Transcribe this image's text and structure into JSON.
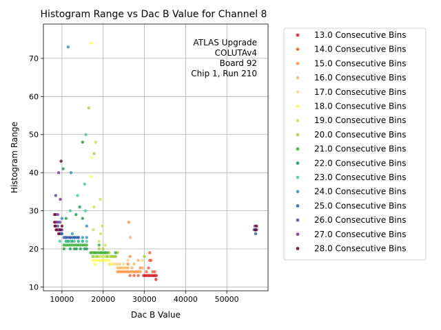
{
  "chart_data": {
    "type": "scatter",
    "title": "Histogram Range vs Dac B Value for Channel 8",
    "xlabel": "Dac B Value",
    "ylabel": "Histogram Range",
    "xlim": [
      5500,
      60000
    ],
    "ylim": [
      9,
      79
    ],
    "xticks": [
      10000,
      20000,
      30000,
      40000,
      50000
    ],
    "yticks": [
      10,
      20,
      30,
      40,
      50,
      60,
      70
    ],
    "grid": true,
    "annotation": [
      "ATLAS Upgrade",
      "COLUTAv4",
      "Board 92",
      "Chip 1, Run 210"
    ],
    "annotation_placement": "top-right",
    "legend_placement": "outside-right",
    "series": [
      {
        "name": "13.0 Consecutive Bins",
        "color": "#d7191c",
        "points": [
          [
            29800,
            13
          ],
          [
            30200,
            13
          ],
          [
            30600,
            13
          ],
          [
            31000,
            13
          ],
          [
            31400,
            13
          ],
          [
            31800,
            13
          ],
          [
            32200,
            13
          ],
          [
            32500,
            13
          ],
          [
            32800,
            12
          ],
          [
            32900,
            13
          ]
        ]
      },
      {
        "name": "14.0 Consecutive Bins",
        "color": "#ec5a3a",
        "points": [
          [
            26500,
            13
          ],
          [
            27500,
            13
          ],
          [
            28500,
            13
          ],
          [
            30500,
            14
          ],
          [
            31000,
            15
          ],
          [
            31300,
            17
          ],
          [
            31300,
            19
          ],
          [
            31600,
            17
          ],
          [
            32000,
            14
          ],
          [
            32500,
            14
          ]
        ]
      },
      {
        "name": "15.0 Consecutive Bins",
        "color": "#fb8c3a",
        "points": [
          [
            23500,
            14
          ],
          [
            24000,
            14
          ],
          [
            24500,
            14
          ],
          [
            25000,
            14
          ],
          [
            25500,
            14
          ],
          [
            26000,
            14
          ],
          [
            26500,
            14
          ],
          [
            27000,
            14
          ],
          [
            27500,
            14
          ],
          [
            28000,
            14
          ],
          [
            28500,
            14
          ],
          [
            29000,
            14
          ],
          [
            26200,
            27
          ],
          [
            26500,
            18
          ],
          [
            26000,
            16
          ],
          [
            29000,
            15
          ]
        ]
      },
      {
        "name": "16.0 Consecutive Bins",
        "color": "#fdb35f",
        "points": [
          [
            23500,
            15
          ],
          [
            24000,
            15
          ],
          [
            24500,
            15
          ],
          [
            25000,
            15
          ],
          [
            25500,
            15
          ],
          [
            26000,
            15
          ],
          [
            27000,
            15
          ],
          [
            28500,
            17
          ],
          [
            29000,
            14
          ],
          [
            29500,
            15
          ],
          [
            26600,
            23
          ],
          [
            27500,
            16
          ],
          [
            24000,
            16
          ]
        ]
      },
      {
        "name": "17.0 Consecutive Bins",
        "color": "#fed68a",
        "points": [
          [
            21500,
            16
          ],
          [
            22000,
            16
          ],
          [
            22500,
            16
          ],
          [
            23000,
            16
          ],
          [
            23500,
            16
          ],
          [
            24000,
            16
          ],
          [
            25000,
            16
          ],
          [
            29500,
            17
          ],
          [
            30000,
            18
          ],
          [
            26000,
            17
          ]
        ]
      },
      {
        "name": "18.0 Consecutive Bins",
        "color": "#ffff55",
        "points": [
          [
            17000,
            74
          ],
          [
            17200,
            44
          ],
          [
            17000,
            39
          ],
          [
            17500,
            17
          ],
          [
            18000,
            17
          ],
          [
            18000,
            16
          ],
          [
            18500,
            17
          ],
          [
            19000,
            17
          ],
          [
            19500,
            17
          ],
          [
            20000,
            17
          ],
          [
            20500,
            17
          ],
          [
            21000,
            17
          ],
          [
            21500,
            17
          ],
          [
            22000,
            16
          ]
        ]
      },
      {
        "name": "19.0 Consecutive Bins",
        "color": "#c5e35a",
        "points": [
          [
            17500,
            18
          ],
          [
            18000,
            18
          ],
          [
            18500,
            18
          ],
          [
            19000,
            18
          ],
          [
            19500,
            18
          ],
          [
            20000,
            18
          ],
          [
            20500,
            18
          ],
          [
            21000,
            18
          ],
          [
            21500,
            18
          ],
          [
            22000,
            18
          ],
          [
            22500,
            18
          ],
          [
            23000,
            18
          ],
          [
            18200,
            48
          ],
          [
            19300,
            33
          ],
          [
            17800,
            31
          ],
          [
            19800,
            26
          ],
          [
            17600,
            25
          ],
          [
            19400,
            24
          ],
          [
            19000,
            22
          ],
          [
            20500,
            21
          ]
        ]
      },
      {
        "name": "20.0 Consecutive Bins",
        "color": "#a1cc45",
        "points": [
          [
            16500,
            57
          ],
          [
            17800,
            45
          ],
          [
            17000,
            19
          ],
          [
            17500,
            18
          ],
          [
            18000,
            19
          ],
          [
            18500,
            18
          ],
          [
            19000,
            20
          ],
          [
            19500,
            19
          ],
          [
            20000,
            20
          ],
          [
            20500,
            19
          ],
          [
            21000,
            18
          ],
          [
            21500,
            19
          ],
          [
            22000,
            18
          ],
          [
            22500,
            18
          ],
          [
            23000,
            18
          ],
          [
            23500,
            19
          ],
          [
            30000,
            18
          ]
        ]
      },
      {
        "name": "21.0 Consecutive Bins",
        "color": "#3aaa35",
        "points": [
          [
            10500,
            21
          ],
          [
            11000,
            21
          ],
          [
            11500,
            21
          ],
          [
            12000,
            21
          ],
          [
            12500,
            21
          ],
          [
            13000,
            21
          ],
          [
            13500,
            21
          ],
          [
            14000,
            21
          ],
          [
            14500,
            21
          ],
          [
            15000,
            21
          ],
          [
            15500,
            21
          ],
          [
            16000,
            21
          ],
          [
            17000,
            19
          ],
          [
            17500,
            19
          ],
          [
            18000,
            19
          ],
          [
            18500,
            19
          ],
          [
            19000,
            19
          ],
          [
            19500,
            19
          ],
          [
            20000,
            19
          ],
          [
            20500,
            19
          ],
          [
            21000,
            19
          ],
          [
            23000,
            19
          ],
          [
            19000,
            21
          ]
        ]
      },
      {
        "name": "22.0 Consecutive Bins",
        "color": "#1a9850",
        "points": [
          [
            10500,
            20
          ],
          [
            11000,
            22
          ],
          [
            11500,
            22
          ],
          [
            12000,
            20
          ],
          [
            12500,
            22
          ],
          [
            13000,
            20
          ],
          [
            13500,
            20
          ],
          [
            14000,
            22
          ],
          [
            14500,
            20
          ],
          [
            15000,
            22
          ],
          [
            15500,
            20
          ],
          [
            16000,
            20
          ],
          [
            15000,
            48
          ],
          [
            10300,
            41
          ],
          [
            15000,
            28
          ],
          [
            13400,
            29
          ],
          [
            14300,
            31
          ],
          [
            11000,
            28
          ]
        ]
      },
      {
        "name": "23.0 Consecutive Bins",
        "color": "#3fc8a0",
        "points": [
          [
            15800,
            50
          ],
          [
            15500,
            37
          ],
          [
            13800,
            34
          ],
          [
            12000,
            30
          ],
          [
            11000,
            22
          ],
          [
            12000,
            22
          ],
          [
            13000,
            22
          ],
          [
            14000,
            22
          ],
          [
            15000,
            22
          ],
          [
            16000,
            22
          ],
          [
            9500,
            22
          ],
          [
            15700,
            30
          ]
        ]
      },
      {
        "name": "24.0 Consecutive Bins",
        "color": "#2c8fbf",
        "points": [
          [
            11500,
            73
          ],
          [
            12200,
            40
          ],
          [
            10000,
            28
          ],
          [
            11000,
            23
          ],
          [
            12000,
            23
          ],
          [
            13000,
            23
          ],
          [
            14000,
            23
          ],
          [
            15000,
            23
          ],
          [
            16000,
            23
          ],
          [
            16000,
            26
          ],
          [
            12500,
            24
          ],
          [
            9800,
            24
          ]
        ]
      },
      {
        "name": "25.0 Consecutive Bins",
        "color": "#2b58a8",
        "points": [
          [
            9000,
            25
          ],
          [
            9500,
            25
          ],
          [
            10000,
            24
          ],
          [
            10500,
            23
          ],
          [
            11000,
            23
          ],
          [
            11500,
            23
          ],
          [
            12000,
            23
          ],
          [
            12500,
            23
          ],
          [
            13000,
            23
          ],
          [
            13500,
            23
          ],
          [
            14000,
            23
          ],
          [
            57000,
            24
          ],
          [
            56600,
            25
          ],
          [
            57200,
            25
          ]
        ]
      },
      {
        "name": "26.0 Consecutive Bins",
        "color": "#5e3c99",
        "points": [
          [
            8500,
            34
          ],
          [
            8500,
            29
          ],
          [
            9000,
            27
          ],
          [
            9500,
            27
          ],
          [
            8500,
            26
          ],
          [
            9000,
            26
          ],
          [
            10000,
            25
          ],
          [
            9500,
            24
          ],
          [
            56800,
            26
          ],
          [
            57000,
            25
          ]
        ]
      },
      {
        "name": "27.0 Consecutive Bins",
        "color": "#7b3294",
        "points": [
          [
            9200,
            40
          ],
          [
            9600,
            33
          ],
          [
            9000,
            29
          ],
          [
            8600,
            27
          ],
          [
            8800,
            25
          ],
          [
            9300,
            25
          ],
          [
            57100,
            25
          ]
        ]
      },
      {
        "name": "28.0 Consecutive Bins",
        "color": "#67001f",
        "points": [
          [
            9800,
            43
          ],
          [
            8200,
            29
          ],
          [
            8200,
            27
          ],
          [
            8300,
            26
          ],
          [
            8600,
            25
          ],
          [
            9200,
            24
          ],
          [
            9600,
            25
          ],
          [
            10000,
            26
          ],
          [
            56900,
            25
          ],
          [
            57200,
            26
          ]
        ]
      }
    ]
  }
}
